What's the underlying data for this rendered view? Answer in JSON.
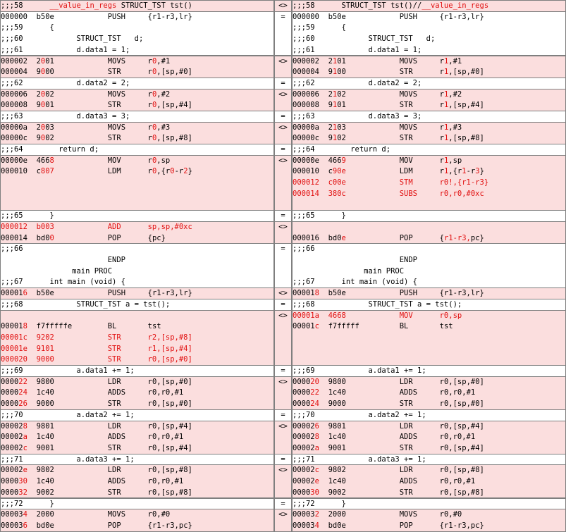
{
  "colors": {
    "diff_bg": "#fbdede",
    "same_bg": "#ffffff",
    "highlight": "#e10f0f",
    "border": "#7f7f7f"
  },
  "blocks": [
    {
      "mark": "<>",
      "rows": 1,
      "left": [
        [
          ";;;58      ",
          "__value_in_regs",
          " STRUCT_TST tst()"
        ]
      ],
      "right": [
        [
          ";;;58      STRUCT_TST tst()//",
          "__value_in_regs"
        ]
      ]
    },
    {
      "mark": "=",
      "rows": 4,
      "left": [
        "000000  b50e            PUSH     {r1-r3,lr}",
        ";;;59      {",
        ";;;60            STRUCT_TST   d;",
        ";;;61            d.data1 = 1;"
      ],
      "right": [
        "000000  b50e            PUSH     {r1-r3,lr}",
        ";;;59      {",
        ";;;60            STRUCT_TST   d;",
        ";;;61            d.data1 = 1;"
      ]
    },
    {
      "mark": "<>",
      "rows": 2,
      "left": [
        [
          "000002  2",
          "0",
          "01            MOVS     r",
          "0",
          ",#1"
        ],
        [
          "000004  9",
          "0",
          "00            STR      r",
          "0",
          ",[sp,#0]"
        ]
      ],
      "right": [
        [
          "000002  2",
          "1",
          "01            MOVS     r",
          "1",
          ",#1"
        ],
        [
          "000004  9",
          "1",
          "00            STR      r",
          "1",
          ",[sp,#0]"
        ]
      ]
    },
    {
      "mark": "=",
      "rows": 1,
      "left": [
        ";;;62            d.data2 = 2;"
      ],
      "right": [
        ";;;62            d.data2 = 2;"
      ]
    },
    {
      "mark": "<>",
      "rows": 2,
      "left": [
        [
          "000006  2",
          "0",
          "02            MOVS     r",
          "0",
          ",#2"
        ],
        [
          "000008  9",
          "0",
          "01            STR      r",
          "0",
          ",[sp,#4]"
        ]
      ],
      "right": [
        [
          "000006  2",
          "1",
          "02            MOVS     r",
          "1",
          ",#2"
        ],
        [
          "000008  9",
          "1",
          "01            STR      r",
          "1",
          ",[sp,#4]"
        ]
      ]
    },
    {
      "mark": "=",
      "rows": 1,
      "left": [
        ";;;63            d.data3 = 3;"
      ],
      "right": [
        ";;;63            d.data3 = 3;"
      ]
    },
    {
      "mark": "<>",
      "rows": 2,
      "left": [
        [
          "00000a  2",
          "0",
          "03            MOVS     r",
          "0",
          ",#3"
        ],
        [
          "00000c  9",
          "0",
          "02            STR      r",
          "0",
          ",[sp,#8]"
        ]
      ],
      "right": [
        [
          "00000a  2",
          "1",
          "03            MOVS     r",
          "1",
          ",#3"
        ],
        [
          "00000c  9",
          "1",
          "02            STR      r",
          "1",
          ",[sp,#8]"
        ]
      ]
    },
    {
      "mark": "=",
      "rows": 1,
      "left": [
        ";;;64        return d;"
      ],
      "right": [
        ";;;64        return d;"
      ]
    },
    {
      "mark": "<>",
      "rows": 5,
      "left": [
        [
          "00000e  466",
          "8",
          "            MOV      r",
          "0",
          ",sp"
        ],
        [
          "000010  c",
          "807",
          "            LDM      r",
          "0",
          ",{r",
          "0",
          "-r",
          "2",
          "}"
        ]
      ],
      "right": [
        [
          "00000e  466",
          "9",
          "            MOV      r",
          "1",
          ",sp"
        ],
        [
          "000010  c",
          "90e",
          "            LDM      r",
          "1",
          ",{r",
          "1",
          "-r",
          "3",
          "}"
        ],
        [
          "",
          "000012  c00e            STM      r0!,{r1-r3}"
        ],
        [
          "",
          "000014  380c            SUBS     r0,r0,#0xc"
        ]
      ]
    },
    {
      "mark": "=",
      "rows": 1,
      "left": [
        ";;;65      }"
      ],
      "right": [
        ";;;65      }"
      ]
    },
    {
      "mark": "<>",
      "rows": 2,
      "left": [
        [
          "",
          "000012  b003            ADD      sp,sp,#0xc"
        ],
        [
          "000014  bd0",
          "0",
          "            POP      {pc}"
        ]
      ],
      "right": [
        "",
        [
          "000016  bd0",
          "e",
          "            POP      {",
          "r1-r3,",
          "pc}"
        ]
      ]
    },
    {
      "mark": "=",
      "rows": 4,
      "left": [
        ";;;66",
        "                        ENDP",
        "                main PROC",
        ";;;67      int main (void) {"
      ],
      "right": [
        ";;;66",
        "                        ENDP",
        "                main PROC",
        ";;;67      int main (void) {"
      ]
    },
    {
      "mark": "<>",
      "rows": 1,
      "left": [
        [
          "00001",
          "6",
          "  b50e            PUSH     {r1-r3,lr}"
        ]
      ],
      "right": [
        [
          "00001",
          "8",
          "  b50e            PUSH     {r1-r3,lr}"
        ]
      ]
    },
    {
      "mark": "=",
      "rows": 1,
      "left": [
        ";;;68            STRUCT_TST a = tst();"
      ],
      "right": [
        ";;;68            STRUCT_TST a = tst();"
      ]
    },
    {
      "mark": "<>",
      "rows": 5,
      "left": [
        "",
        [
          "00001",
          "8",
          "  f7fffffe        BL       tst"
        ],
        [
          "",
          "00001c  9202            STR      r2,[sp,#8]"
        ],
        [
          "",
          "00001e  9101            STR      r1,[sp,#4]"
        ],
        [
          "",
          "000020  9000            STR      r0,[sp,#0]"
        ]
      ],
      "right": [
        [
          "",
          "00001a  4668            MOV      r0,sp"
        ],
        [
          "00001",
          "c",
          "  f7fffff",
          "",
          "         BL       tst"
        ]
      ]
    },
    {
      "mark": "=",
      "rows": 1,
      "left": [
        ";;;69            a.data1 += 1;"
      ],
      "right": [
        ";;;69            a.data1 += 1;"
      ]
    },
    {
      "mark": "<>",
      "rows": 3,
      "left": [
        [
          "0000",
          "22",
          "  9800            LDR      r0,[sp,#0]"
        ],
        [
          "0000",
          "24",
          "  1c40            ADDS     r0,r0,#1"
        ],
        [
          "0000",
          "26",
          "  9000            STR      r0,[sp,#0]"
        ]
      ],
      "right": [
        [
          "0000",
          "20",
          "  9800            LDR      r0,[sp,#0]"
        ],
        [
          "0000",
          "22",
          "  1c40            ADDS     r0,r0,#1"
        ],
        [
          "0000",
          "24",
          "  9000            STR      r0,[sp,#0]"
        ]
      ]
    },
    {
      "mark": "=",
      "rows": 1,
      "left": [
        ";;;70            a.data2 += 1;"
      ],
      "right": [
        ";;;70            a.data2 += 1;"
      ]
    },
    {
      "mark": "<>",
      "rows": 3,
      "left": [
        [
          "00002",
          "8",
          "  9801            LDR      r0,[sp,#4]"
        ],
        [
          "00002",
          "a",
          "  1c40            ADDS     r0,r0,#1"
        ],
        [
          "00002",
          "c",
          "  9001            STR      r0,[sp,#4]"
        ]
      ],
      "right": [
        [
          "00002",
          "6",
          "  9801            LDR      r0,[sp,#4]"
        ],
        [
          "00002",
          "8",
          "  1c40            ADDS     r0,r0,#1"
        ],
        [
          "00002",
          "a",
          "  9001            STR      r0,[sp,#4]"
        ]
      ]
    },
    {
      "mark": "=",
      "rows": 1,
      "left": [
        ";;;71            a.data3 += 1;"
      ],
      "right": [
        ";;;71            a.data3 += 1;"
      ]
    },
    {
      "mark": "<>",
      "rows": 3,
      "left": [
        [
          "00002",
          "e",
          "  9802            LDR      r0,[sp,#8]"
        ],
        [
          "0000",
          "30",
          "  1c40            ADDS     r0,r0,#1"
        ],
        [
          "0000",
          "32",
          "  9002            STR      r0,[sp,#8]"
        ]
      ],
      "right": [
        [
          "00002",
          "c",
          "  9802            LDR      r0,[sp,#8]"
        ],
        [
          "00002",
          "e",
          "  1c40            ADDS     r0,r0,#1"
        ],
        [
          "0000",
          "30",
          "  9002            STR      r0,[sp,#8]"
        ]
      ]
    },
    {
      "mark": "=",
      "rows": 1,
      "left": [
        ";;;72      }"
      ],
      "right": [
        ";;;72      }"
      ]
    },
    {
      "mark": "<>",
      "rows": 2,
      "left": [
        [
          "00003",
          "4",
          "  2000            MOVS     r0,#0"
        ],
        [
          "00003",
          "6",
          "  bd0e            POP      {r1-r3,pc}"
        ]
      ],
      "right": [
        [
          "00003",
          "2",
          "  2000            MOVS     r0,#0"
        ],
        [
          "00003",
          "4",
          "  bd0e            POP      {r1-r3,pc}"
        ]
      ]
    }
  ]
}
